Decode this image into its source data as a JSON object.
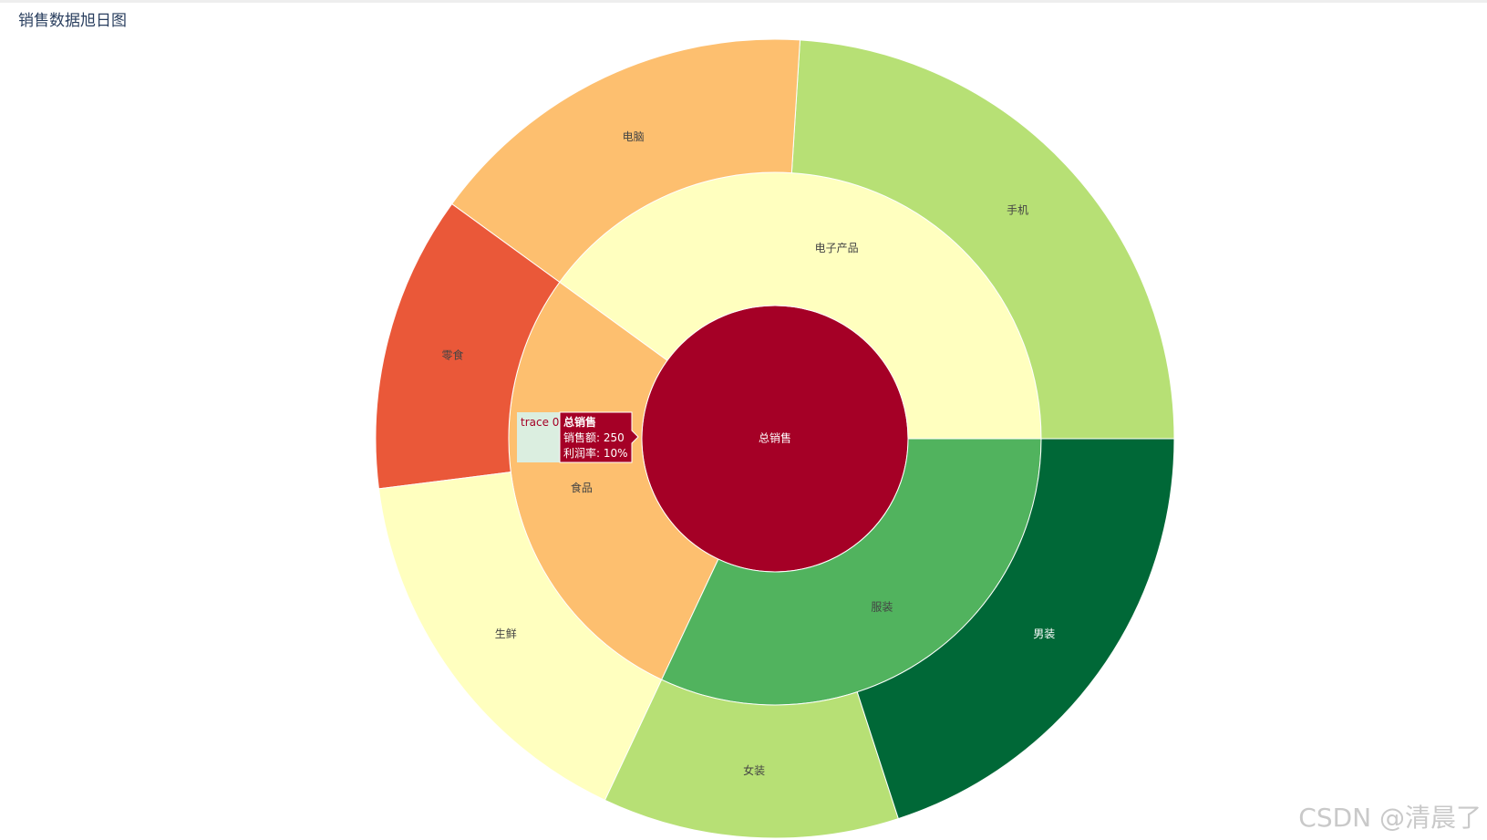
{
  "chart_data": {
    "type": "sunburst",
    "title": "销售数据旭日图",
    "root": {
      "label": "总销售",
      "value": 250,
      "profit_rate": "10%",
      "color": "#a50026",
      "children": [
        {
          "label": "电子产品",
          "value": 100,
          "color": "#ffffbf",
          "children": [
            {
              "label": "手机",
              "value": 60,
              "color": "#b7e075"
            },
            {
              "label": "电脑",
              "value": 40,
              "color": "#fdbf6f"
            }
          ]
        },
        {
          "label": "食品",
          "value": 70,
          "color": "#fdbf6f",
          "children": [
            {
              "label": "零食",
              "value": 30,
              "color": "#ea5839"
            },
            {
              "label": "生鲜",
              "value": 40,
              "color": "#ffffbf"
            }
          ]
        },
        {
          "label": "服装",
          "value": 80,
          "color": "#51b35e",
          "children": [
            {
              "label": "女装",
              "value": 30,
              "color": "#b7e075"
            },
            {
              "label": "男装",
              "value": 50,
              "color": "#006837"
            }
          ]
        }
      ]
    },
    "tooltip": {
      "trace": "trace 0",
      "label": "总销售",
      "line1": "销售额: 250",
      "line2": "利润率: 10%"
    }
  },
  "watermark": "CSDN @清晨了"
}
